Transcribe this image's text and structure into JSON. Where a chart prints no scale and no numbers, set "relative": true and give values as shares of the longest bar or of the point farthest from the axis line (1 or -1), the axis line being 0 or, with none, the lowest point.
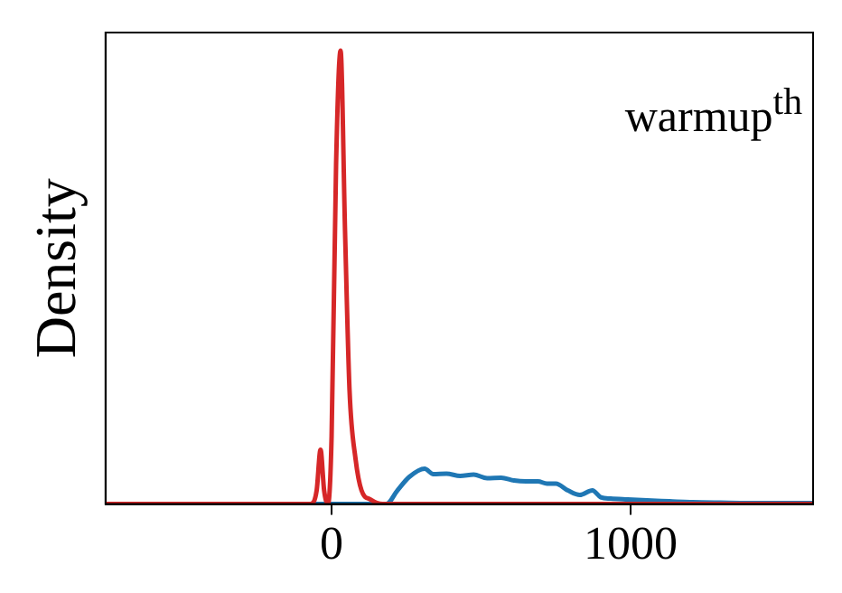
{
  "chart_data": {
    "type": "line",
    "relative": true,
    "ylabel": "Density",
    "annotations": [
      "warmup$^{th}$"
    ],
    "xlim": [
      -756,
      1610
    ],
    "xticks": [
      0,
      1000
    ],
    "grid": false,
    "legend": false,
    "marker": "none",
    "line_style": "solid",
    "series": [
      {
        "color": "#d62728",
        "x": [
          -756,
          -120,
          -70,
          -50,
          -37,
          -25,
          -12,
          0,
          15,
          30,
          45,
          60,
          80,
          100,
          130,
          170,
          1610
        ],
        "values": [
          0,
          0,
          0,
          0.03,
          0.12,
          0.03,
          0,
          0.15,
          0.75,
          1,
          0.6,
          0.25,
          0.1,
          0.03,
          0.01,
          0,
          0
        ]
      },
      {
        "color": "#1f77b4",
        "x": [
          -756,
          150,
          183,
          220,
          260,
          311,
          340,
          384,
          430,
          475,
          520,
          567,
          610,
          650,
          690,
          720,
          750,
          790,
          830,
          872,
          900,
          933,
          990,
          1055,
          1130,
          1207,
          1300,
          1450,
          1610
        ],
        "values": [
          0,
          0,
          0,
          0.03,
          0.06,
          0.078,
          0.066,
          0.067,
          0.062,
          0.065,
          0.057,
          0.058,
          0.052,
          0.05,
          0.05,
          0.045,
          0.045,
          0.03,
          0.02,
          0.03,
          0.015,
          0.012,
          0.01,
          0.008,
          0.006,
          0.004,
          0.003,
          0.002,
          0.002
        ]
      }
    ]
  }
}
